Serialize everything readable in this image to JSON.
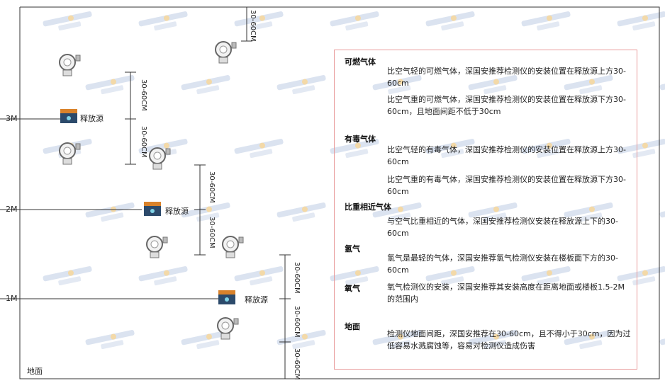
{
  "diagram": {
    "levels": [
      "3M",
      "2M",
      "1M"
    ],
    "ground_label": "地面",
    "source_label": "释放源",
    "dimension_label": "30-60CM",
    "watermark": "SINGOAN 深国安"
  },
  "panel": {
    "sections": [
      {
        "title": "可燃气体",
        "paras": [
          "比空气轻的可燃气体，深国安推荐检测仪的安装位置在释放源上方30-60cm",
          "比空气重的可燃气体，深国安推荐检测仪的安装位置在释放源下方30-60cm，且地面间距不低于30cm"
        ]
      },
      {
        "title": "有毒气体",
        "paras": [
          "比空气轻的有毒气体，深国安推荐检测仪的安装位置在释放源上方30-60cm",
          "比空气重的有毒气体，深国安推荐检测仪的安装位置在释放源下方30-60cm"
        ]
      },
      {
        "title": "比重相近气体",
        "paras": [
          "与空气比重相近的气体，深国安推荐检测仪安装在释放源上下的30-60cm"
        ]
      },
      {
        "title": "氢气",
        "paras": [
          "氢气是最轻的气体，深国安推荐氢气检测仪安装在楼板面下方的30-60cm"
        ]
      },
      {
        "title": "氧气",
        "paras": [
          "氧气检测仪的安装，深国安推荐其安装高度在距离地面或楼板1.5-2M的范围内"
        ]
      },
      {
        "title": "地面",
        "paras": [
          "检测仪地面间距，深国安推荐在30-60cm，且不得小于30cm，因为过低容易水溅腐蚀等，容易对检测仪造成伤害"
        ]
      }
    ]
  }
}
